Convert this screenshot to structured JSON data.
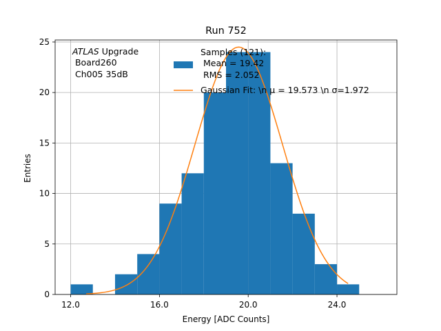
{
  "chart_data": {
    "type": "bar",
    "title": "Run 752",
    "xlabel": "Energy [ADC Counts]",
    "ylabel": "Entries",
    "xlim": [
      11.3,
      26.7
    ],
    "ylim": [
      0,
      25.2
    ],
    "xticks": [
      12.0,
      16.0,
      20.0,
      24.0
    ],
    "xtick_labels": [
      "12.0",
      "16.0",
      "20.0",
      "24.0"
    ],
    "yticks": [
      0,
      5,
      10,
      15,
      20,
      25
    ],
    "ytick_labels": [
      "0",
      "5",
      "10",
      "15",
      "20",
      "25"
    ],
    "grid": true,
    "annotation": {
      "italic": "ATLAS",
      "rest": " Upgrade",
      "line2": " Board260",
      "line3": " Ch005 35dB"
    },
    "legend": {
      "placement": "upper-right",
      "hist_label_lines": [
        "Samples (121):",
        " Mean = 19.42",
        " RMS = 2.052"
      ],
      "fit_label": "Gaussian Fit: \\n μ = 19.573 \\n σ=1.972"
    },
    "histogram": {
      "bin_edges": [
        12,
        13,
        14,
        15,
        16,
        17,
        18,
        19,
        20,
        21,
        22,
        23,
        24,
        25
      ],
      "counts": [
        1,
        0,
        2,
        4,
        9,
        12,
        20,
        24,
        24,
        13,
        8,
        3,
        1
      ],
      "color": "#1f77b4"
    },
    "fit": {
      "type": "gaussian",
      "mean": 19.573,
      "sigma": 1.972,
      "amplitude": 24.5,
      "x_range": [
        12.7,
        24.5
      ],
      "color": "#ff7f0e"
    }
  }
}
